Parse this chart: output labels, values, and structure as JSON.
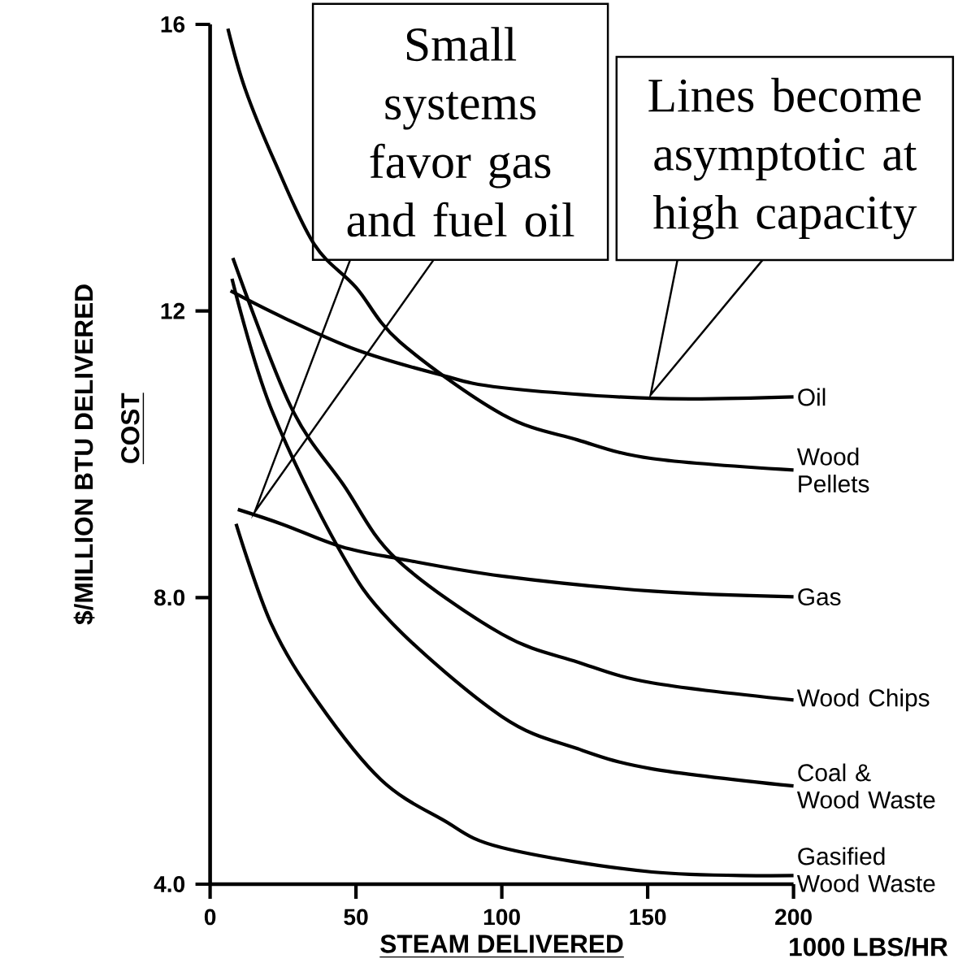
{
  "chart_data": {
    "type": "line",
    "xlabel": "STEAM DELIVERED",
    "ylabel": "$/MILLION BTU DELIVERED",
    "xlim": [
      0,
      200
    ],
    "ylim": [
      4,
      16
    ],
    "xticks": [
      0,
      50,
      100,
      150,
      200
    ],
    "yticks": [
      {
        "value": 4,
        "label": "4.0"
      },
      {
        "value": 8,
        "label": "8.0"
      },
      12,
      16
    ],
    "grid": false,
    "series": [
      {
        "name": "Oil",
        "color": "#000000",
        "x": [
          7,
          25,
          50,
          78,
          100,
          151.5,
          200
        ],
        "values": [
          12.28,
          11.91,
          11.46,
          11.12,
          10.93,
          10.78,
          10.8
        ]
      },
      {
        "name": "Wood Pellets",
        "color": "#000000",
        "x": [
          6.1,
          12,
          22.3,
          35.7,
          50,
          65,
          100,
          126,
          151.5,
          200
        ],
        "values": [
          15.94,
          15.1,
          14.07,
          12.93,
          12.33,
          11.57,
          10.56,
          10.2,
          9.94,
          9.78
        ]
      },
      {
        "name": "Gas",
        "color": "#000000",
        "x": [
          9.5,
          25,
          45,
          65,
          100,
          151.5,
          200
        ],
        "values": [
          9.23,
          9.02,
          8.71,
          8.54,
          8.3,
          8.09,
          8.01
        ]
      },
      {
        "name": "Wood Chips",
        "color": "#000000",
        "x": [
          7.8,
          27.6,
          45.6,
          63.8,
          100,
          126,
          151.5,
          200
        ],
        "values": [
          12.74,
          10.67,
          9.58,
          8.54,
          7.49,
          7.1,
          6.81,
          6.57
        ]
      },
      {
        "name": "Coal & Wood Waste",
        "color": "#000000",
        "x": [
          7.5,
          20.6,
          44,
          62.7,
          100,
          126,
          151.5,
          200
        ],
        "values": [
          12.45,
          10.67,
          8.69,
          7.63,
          6.34,
          5.89,
          5.61,
          5.37
        ]
      },
      {
        "name": "Gasified Wood Waste",
        "color": "#000000",
        "x": [
          8.9,
          21,
          37,
          58.5,
          79.7,
          100,
          151.5,
          200
        ],
        "values": [
          9.03,
          7.63,
          6.54,
          5.46,
          4.9,
          4.51,
          4.17,
          4.12
        ]
      }
    ],
    "annotations": [
      "Small systems favor gas and fuel oil",
      "Lines become asymptotic at high capacity",
      "COST",
      "1000 LBS/HR"
    ]
  }
}
